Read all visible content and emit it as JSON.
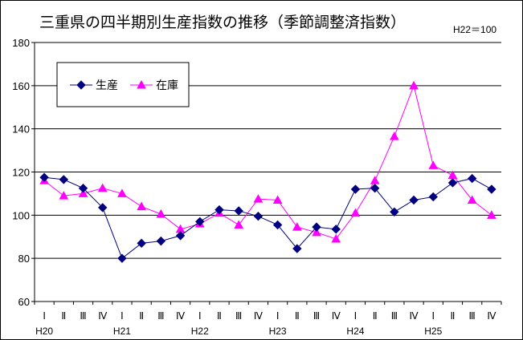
{
  "chart_data": {
    "type": "line",
    "title": "三重県の四半期別生産指数の推移（季節調整済指数）",
    "note": "H22＝100",
    "xlabel": "",
    "ylabel": "",
    "ylim": [
      60,
      180
    ],
    "yticks": [
      60,
      80,
      100,
      120,
      140,
      160,
      180
    ],
    "grid": true,
    "legend_position": "top-left",
    "x": [
      "Ⅰ",
      "Ⅱ",
      "Ⅲ",
      "Ⅳ",
      "Ⅰ",
      "Ⅱ",
      "Ⅲ",
      "Ⅳ",
      "Ⅰ",
      "Ⅱ",
      "Ⅲ",
      "Ⅳ",
      "Ⅰ",
      "Ⅱ",
      "Ⅲ",
      "Ⅳ",
      "Ⅰ",
      "Ⅱ",
      "Ⅲ",
      "Ⅳ",
      "Ⅰ",
      "Ⅱ",
      "Ⅲ",
      "Ⅳ"
    ],
    "years": [
      {
        "label": "H20",
        "index": 0
      },
      {
        "label": "H21",
        "index": 4
      },
      {
        "label": "H22",
        "index": 8
      },
      {
        "label": "H23",
        "index": 12
      },
      {
        "label": "H24",
        "index": 16
      },
      {
        "label": "H25",
        "index": 20
      }
    ],
    "series": [
      {
        "name": "生産",
        "color": "#000080",
        "marker": "diamond",
        "values": [
          117.5,
          116.5,
          112.5,
          103.5,
          80,
          87,
          88,
          90.5,
          97,
          102.5,
          102,
          99.5,
          95.5,
          84.5,
          94.5,
          93.5,
          112,
          112.5,
          101.5,
          107,
          108.5,
          115,
          117,
          112
        ]
      },
      {
        "name": "在庫",
        "color": "#FF00FF",
        "marker": "triangle",
        "values": [
          116,
          109,
          110,
          112.5,
          110,
          104,
          100.5,
          93.5,
          96,
          101,
          95.5,
          107.5,
          107,
          94.5,
          92,
          89,
          101,
          116,
          136.5,
          160,
          123,
          118.5,
          107,
          100
        ]
      }
    ]
  }
}
